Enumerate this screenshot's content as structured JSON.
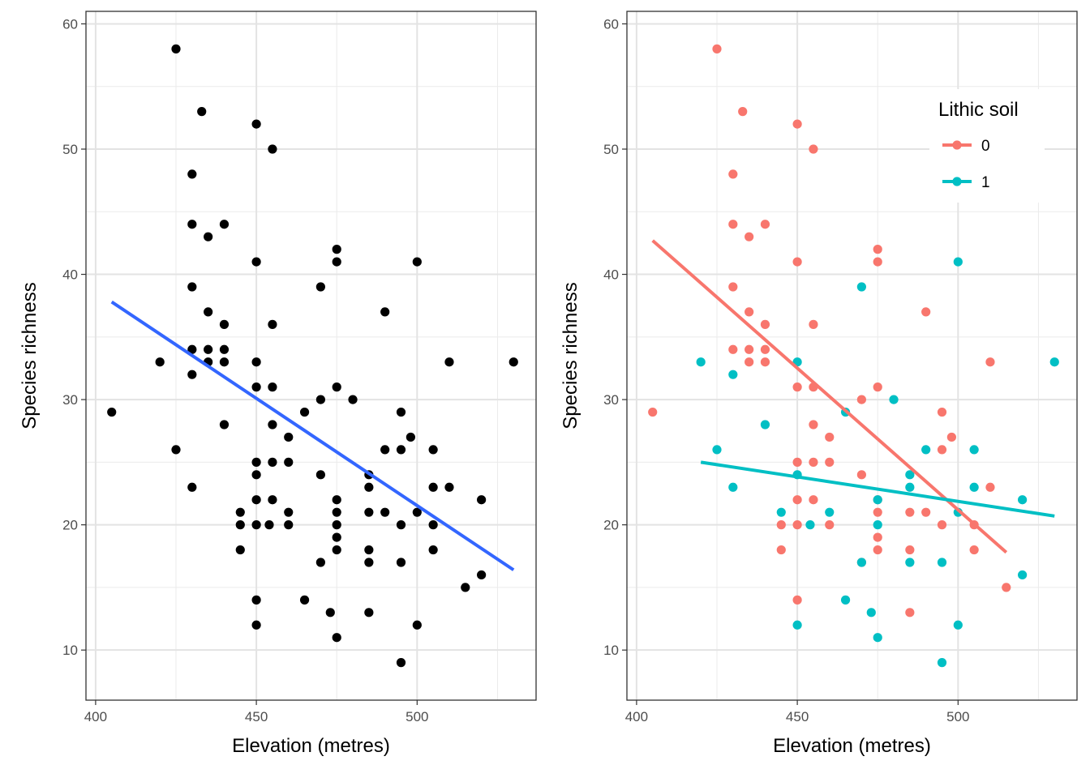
{
  "chart_data": [
    {
      "type": "scatter",
      "title": "",
      "xlabel": "Elevation (metres)",
      "ylabel": "Species richness",
      "xlim": [
        397,
        537
      ],
      "ylim": [
        6,
        61
      ],
      "xticks": [
        400,
        450,
        500
      ],
      "yticks": [
        10,
        20,
        30,
        40,
        50,
        60
      ],
      "grid": true,
      "points_color": "#000000",
      "points": [
        [
          405,
          29
        ],
        [
          420,
          33
        ],
        [
          425,
          58
        ],
        [
          425,
          26
        ],
        [
          430,
          48
        ],
        [
          430,
          44
        ],
        [
          430,
          39
        ],
        [
          430,
          34
        ],
        [
          430,
          32
        ],
        [
          430,
          23
        ],
        [
          433,
          53
        ],
        [
          435,
          43
        ],
        [
          435,
          37
        ],
        [
          435,
          34
        ],
        [
          435,
          33
        ],
        [
          440,
          44
        ],
        [
          440,
          36
        ],
        [
          440,
          34
        ],
        [
          440,
          33
        ],
        [
          440,
          28
        ],
        [
          445,
          21
        ],
        [
          445,
          20
        ],
        [
          445,
          18
        ],
        [
          450,
          52
        ],
        [
          450,
          41
        ],
        [
          450,
          33
        ],
        [
          450,
          31
        ],
        [
          450,
          25
        ],
        [
          450,
          24
        ],
        [
          450,
          22
        ],
        [
          450,
          20
        ],
        [
          450,
          14
        ],
        [
          450,
          12
        ],
        [
          454,
          20
        ],
        [
          455,
          50
        ],
        [
          455,
          36
        ],
        [
          455,
          31
        ],
        [
          455,
          28
        ],
        [
          455,
          25
        ],
        [
          455,
          22
        ],
        [
          460,
          27
        ],
        [
          460,
          25
        ],
        [
          460,
          21
        ],
        [
          460,
          20
        ],
        [
          465,
          29
        ],
        [
          465,
          14
        ],
        [
          470,
          39
        ],
        [
          470,
          30
        ],
        [
          470,
          24
        ],
        [
          470,
          17
        ],
        [
          473,
          13
        ],
        [
          475,
          42
        ],
        [
          475,
          41
        ],
        [
          475,
          31
        ],
        [
          475,
          22
        ],
        [
          475,
          21
        ],
        [
          475,
          20
        ],
        [
          475,
          19
        ],
        [
          475,
          18
        ],
        [
          475,
          11
        ],
        [
          480,
          30
        ],
        [
          485,
          24
        ],
        [
          485,
          23
        ],
        [
          485,
          21
        ],
        [
          485,
          18
        ],
        [
          485,
          17
        ],
        [
          485,
          13
        ],
        [
          490,
          37
        ],
        [
          490,
          26
        ],
        [
          490,
          21
        ],
        [
          495,
          29
        ],
        [
          495,
          26
        ],
        [
          495,
          20
        ],
        [
          495,
          17
        ],
        [
          495,
          9
        ],
        [
          498,
          27
        ],
        [
          500,
          41
        ],
        [
          500,
          21
        ],
        [
          500,
          12
        ],
        [
          505,
          26
        ],
        [
          505,
          23
        ],
        [
          505,
          20
        ],
        [
          505,
          18
        ],
        [
          510,
          33
        ],
        [
          510,
          23
        ],
        [
          515,
          15
        ],
        [
          520,
          22
        ],
        [
          520,
          16
        ],
        [
          530,
          33
        ]
      ],
      "series": [
        {
          "type": "line",
          "color": "#3366ff",
          "x": [
            405,
            530
          ],
          "y": [
            37.8,
            16.4
          ]
        }
      ]
    },
    {
      "type": "scatter",
      "title": "",
      "xlabel": "Elevation (metres)",
      "ylabel": "Species richness",
      "xlim": [
        397,
        537
      ],
      "ylim": [
        6,
        61
      ],
      "xticks": [
        400,
        450,
        500
      ],
      "yticks": [
        10,
        20,
        30,
        40,
        50,
        60
      ],
      "grid": true,
      "legend": {
        "title": "Lithic soil",
        "position": "top-right"
      },
      "series": [
        {
          "name": "0",
          "color": "#f8766d",
          "points": [
            [
              405,
              29
            ],
            [
              425,
              58
            ],
            [
              430,
              48
            ],
            [
              430,
              44
            ],
            [
              430,
              39
            ],
            [
              430,
              34
            ],
            [
              433,
              53
            ],
            [
              435,
              43
            ],
            [
              435,
              37
            ],
            [
              435,
              34
            ],
            [
              435,
              33
            ],
            [
              440,
              44
            ],
            [
              440,
              36
            ],
            [
              440,
              34
            ],
            [
              440,
              33
            ],
            [
              445,
              20
            ],
            [
              445,
              18
            ],
            [
              450,
              52
            ],
            [
              450,
              41
            ],
            [
              450,
              31
            ],
            [
              450,
              25
            ],
            [
              450,
              22
            ],
            [
              450,
              20
            ],
            [
              450,
              14
            ],
            [
              455,
              50
            ],
            [
              455,
              36
            ],
            [
              455,
              31
            ],
            [
              455,
              28
            ],
            [
              455,
              25
            ],
            [
              455,
              22
            ],
            [
              460,
              27
            ],
            [
              460,
              25
            ],
            [
              460,
              20
            ],
            [
              470,
              30
            ],
            [
              470,
              24
            ],
            [
              470,
              17
            ],
            [
              475,
              42
            ],
            [
              475,
              41
            ],
            [
              475,
              31
            ],
            [
              475,
              22
            ],
            [
              475,
              21
            ],
            [
              475,
              19
            ],
            [
              475,
              18
            ],
            [
              485,
              21
            ],
            [
              485,
              18
            ],
            [
              485,
              13
            ],
            [
              490,
              37
            ],
            [
              490,
              21
            ],
            [
              495,
              29
            ],
            [
              495,
              26
            ],
            [
              495,
              20
            ],
            [
              498,
              27
            ],
            [
              505,
              20
            ],
            [
              505,
              18
            ],
            [
              510,
              33
            ],
            [
              510,
              23
            ],
            [
              515,
              15
            ]
          ],
          "fit": {
            "x": [
              405,
              515
            ],
            "y": [
              42.7,
              17.8
            ]
          }
        },
        {
          "name": "1",
          "color": "#00bfc4",
          "points": [
            [
              420,
              33
            ],
            [
              425,
              26
            ],
            [
              430,
              32
            ],
            [
              430,
              23
            ],
            [
              440,
              28
            ],
            [
              445,
              21
            ],
            [
              450,
              33
            ],
            [
              450,
              24
            ],
            [
              450,
              12
            ],
            [
              454,
              20
            ],
            [
              460,
              21
            ],
            [
              465,
              29
            ],
            [
              465,
              14
            ],
            [
              470,
              39
            ],
            [
              470,
              17
            ],
            [
              473,
              13
            ],
            [
              475,
              22
            ],
            [
              475,
              20
            ],
            [
              475,
              11
            ],
            [
              480,
              30
            ],
            [
              485,
              24
            ],
            [
              485,
              23
            ],
            [
              485,
              17
            ],
            [
              490,
              26
            ],
            [
              495,
              17
            ],
            [
              495,
              9
            ],
            [
              500,
              41
            ],
            [
              500,
              21
            ],
            [
              500,
              12
            ],
            [
              505,
              26
            ],
            [
              505,
              23
            ],
            [
              520,
              22
            ],
            [
              520,
              16
            ],
            [
              530,
              33
            ]
          ],
          "fit": {
            "x": [
              420,
              530
            ],
            "y": [
              25.0,
              20.7
            ]
          }
        }
      ]
    }
  ]
}
